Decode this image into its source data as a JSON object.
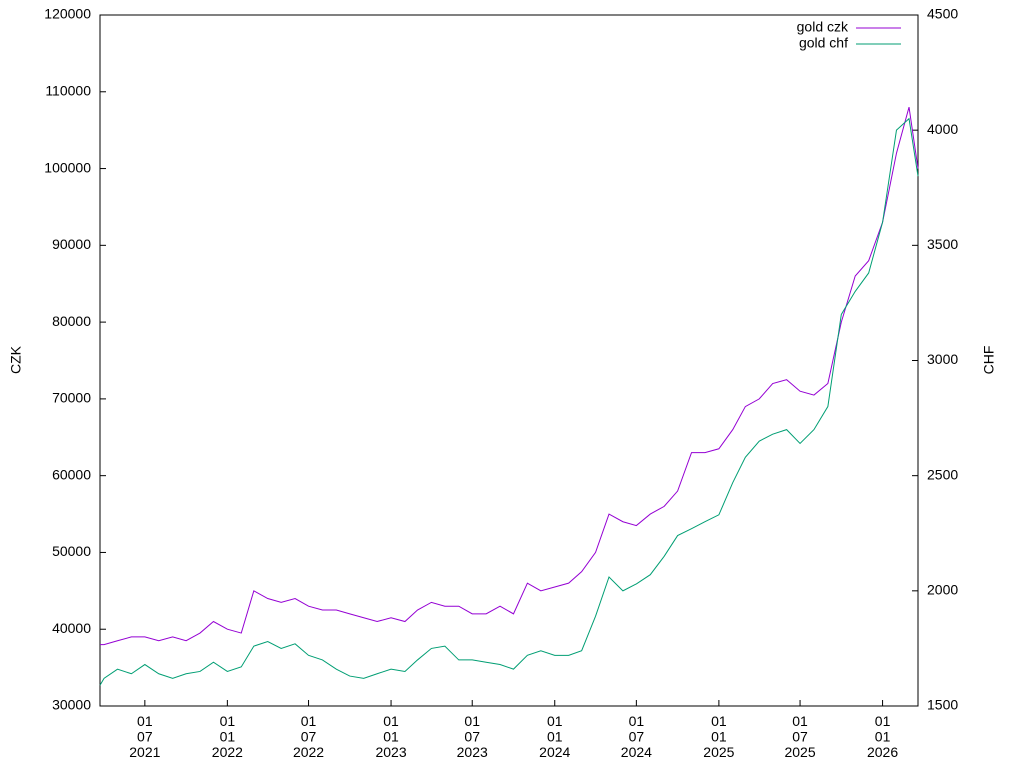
{
  "chart_data": {
    "type": "line",
    "x": [
      "2021-03-23",
      "2021-04-01",
      "2021-05-01",
      "2021-06-01",
      "2021-07-01",
      "2021-08-01",
      "2021-09-01",
      "2021-10-01",
      "2021-11-01",
      "2021-12-01",
      "2022-01-01",
      "2022-02-01",
      "2022-03-01",
      "2022-04-01",
      "2022-05-01",
      "2022-06-01",
      "2022-07-01",
      "2022-08-01",
      "2022-09-01",
      "2022-10-01",
      "2022-11-01",
      "2022-12-01",
      "2023-01-01",
      "2023-02-01",
      "2023-03-01",
      "2023-04-01",
      "2023-05-01",
      "2023-06-01",
      "2023-07-01",
      "2023-08-01",
      "2023-09-01",
      "2023-10-01",
      "2023-11-01",
      "2023-12-01",
      "2024-01-01",
      "2024-02-01",
      "2024-03-01",
      "2024-04-01",
      "2024-05-01",
      "2024-06-01",
      "2024-07-01",
      "2024-08-01",
      "2024-09-01",
      "2024-10-01",
      "2024-11-01",
      "2024-12-01",
      "2025-01-01",
      "2025-02-01",
      "2025-03-01",
      "2025-04-01",
      "2025-05-01",
      "2025-06-01",
      "2025-07-01",
      "2025-08-01",
      "2025-09-01",
      "2025-10-01",
      "2025-11-01",
      "2025-12-01",
      "2026-01-01",
      "2026-02-01",
      "2026-03-01",
      "2026-03-21"
    ],
    "series": [
      {
        "name": "gold czk",
        "color": "#9400d3",
        "axis": "y",
        "values": [
          38000,
          38000,
          38500,
          39000,
          39000,
          38500,
          39000,
          38500,
          39500,
          41000,
          40000,
          39500,
          45000,
          44000,
          43500,
          44000,
          43000,
          42500,
          42500,
          42000,
          41500,
          41000,
          41500,
          41000,
          42500,
          43500,
          43000,
          43000,
          42000,
          42000,
          43000,
          42000,
          46000,
          45000,
          45500,
          46000,
          47500,
          50000,
          55000,
          54000,
          53500,
          55000,
          56000,
          58000,
          63000,
          63000,
          63500,
          66000,
          69000,
          70000,
          72000,
          72500,
          71000,
          70500,
          72000,
          80000,
          86000,
          88000,
          93000,
          102000,
          108000,
          100000
        ]
      },
      {
        "name": "gold chf",
        "color": "#009e73",
        "axis": "y2",
        "values": [
          1590,
          1620,
          1660,
          1640,
          1680,
          1640,
          1620,
          1640,
          1650,
          1690,
          1650,
          1670,
          1760,
          1780,
          1750,
          1770,
          1720,
          1700,
          1660,
          1630,
          1620,
          1640,
          1660,
          1650,
          1700,
          1750,
          1760,
          1700,
          1700,
          1690,
          1680,
          1660,
          1720,
          1740,
          1720,
          1720,
          1740,
          1890,
          2060,
          2000,
          2030,
          2070,
          2150,
          2240,
          2270,
          2300,
          2330,
          2470,
          2580,
          2650,
          2680,
          2700,
          2640,
          2700,
          2800,
          3200,
          3300,
          3380,
          3600,
          4000,
          4050,
          3800
        ]
      }
    ],
    "xlim": [
      "2021-03-23",
      "2026-03-21"
    ],
    "xticks": [
      {
        "value": "2021-07-01",
        "label": "01\n07\n2021"
      },
      {
        "value": "2022-01-01",
        "label": "01\n01\n2022"
      },
      {
        "value": "2022-07-01",
        "label": "01\n07\n2022"
      },
      {
        "value": "2023-01-01",
        "label": "01\n01\n2023"
      },
      {
        "value": "2023-07-01",
        "label": "01\n07\n2023"
      },
      {
        "value": "2024-01-01",
        "label": "01\n01\n2024"
      },
      {
        "value": "2024-07-01",
        "label": "01\n07\n2024"
      },
      {
        "value": "2025-01-01",
        "label": "01\n01\n2025"
      },
      {
        "value": "2025-07-01",
        "label": "01\n07\n2025"
      },
      {
        "value": "2026-01-01",
        "label": "01\n01\n2026"
      }
    ],
    "ylabel": "CZK",
    "ylim": [
      30000,
      120000
    ],
    "yticks": [
      30000,
      40000,
      50000,
      60000,
      70000,
      80000,
      90000,
      100000,
      110000,
      120000
    ],
    "y2label": "CHF",
    "y2lim": [
      1500,
      4500
    ],
    "y2ticks": [
      1500,
      2000,
      2500,
      3000,
      3500,
      4000,
      4500
    ],
    "legend": "top-right"
  }
}
